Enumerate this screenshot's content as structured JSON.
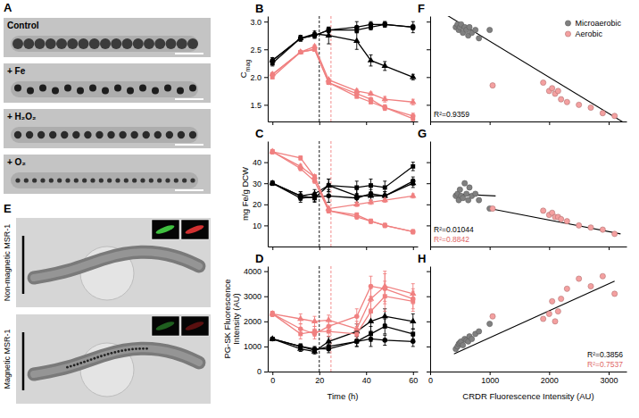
{
  "panels": [
    {
      "label": "A",
      "type": "image",
      "strips": [
        "Control",
        "+ Fe",
        "+ H₂O₂",
        "+ O₂"
      ]
    },
    {
      "label": "E",
      "type": "image",
      "images": [
        "Non-magnetic MSR-1",
        "Magnetic MSR-1"
      ]
    }
  ],
  "chart_data": [
    {
      "label": "B",
      "type": "line",
      "y_label": "C",
      "y_label_subscript": "mag",
      "x": [
        0,
        12,
        18,
        24,
        36,
        42,
        48,
        60
      ],
      "xlim": [
        -2,
        62
      ],
      "xticks": [
        0,
        20,
        40,
        60
      ],
      "ylim": [
        1.2,
        3.1
      ],
      "yticks": [
        1.5,
        {
          "value": 2,
          "label": "2.0"
        },
        2.5,
        {
          "value": 3,
          "label": "3.0"
        }
      ],
      "tick_labels": "y",
      "vlines": [
        {
          "value": 20,
          "color": "#000000",
          "line_style": "dashed"
        },
        {
          "value": 25,
          "color": "#f08080",
          "line_style": "dashed"
        }
      ],
      "series": [
        {
          "color": "#000000",
          "marker": "circle",
          "values": [
            2.3,
            2.7,
            2.75,
            2.85,
            2.9,
            2.95,
            2.95,
            2.9
          ],
          "errors": [
            0.05,
            0.05,
            0.05,
            0.05,
            0.1,
            0.05,
            0.05,
            0.1
          ]
        },
        {
          "color": "#000000",
          "marker": "triangle",
          "values": [
            2.3,
            2.7,
            2.78,
            2.75,
            2.65,
            2.3,
            2.2,
            2.0
          ],
          "errors": [
            0.05,
            0.05,
            0.05,
            0.15,
            0.15,
            0.1,
            0.08,
            0.05
          ]
        },
        {
          "color": "#000000",
          "marker": "square",
          "values": [
            2.25,
            2.7,
            2.75,
            2.85,
            2.85,
            2.9,
            2.95,
            2.9
          ],
          "errors": [
            0.05,
            0.05,
            0.05,
            0.05,
            0.05,
            0.05,
            0.05,
            0.05
          ]
        },
        {
          "color": "#f08080",
          "marker": "circle",
          "values": [
            2.05,
            2.45,
            2.5,
            1.9,
            1.7,
            1.6,
            1.45,
            1.3
          ],
          "errors": [
            0.03,
            0.03,
            0.03,
            0.03,
            0.03,
            0.03,
            0.05,
            0.05
          ]
        },
        {
          "color": "#f08080",
          "marker": "triangle",
          "values": [
            2.05,
            2.45,
            2.55,
            1.95,
            1.75,
            1.7,
            1.6,
            1.55
          ],
          "errors": [
            0.03,
            0.03,
            0.03,
            0.03,
            0.03,
            0.03,
            0.05,
            0.05
          ]
        },
        {
          "color": "#f08080",
          "marker": "square",
          "values": [
            2.0,
            2.45,
            2.5,
            1.9,
            1.65,
            1.55,
            1.45,
            1.25
          ],
          "errors": [
            0.03,
            0.03,
            0.03,
            0.03,
            0.03,
            0.03,
            0.05,
            0.05
          ]
        }
      ]
    },
    {
      "label": "C",
      "type": "line",
      "y_label": "mg Fe/g DCW",
      "x": [
        0,
        12,
        18,
        24,
        36,
        42,
        48,
        60
      ],
      "xlim": [
        -2,
        62
      ],
      "xticks": [
        0,
        20,
        40,
        60
      ],
      "ylim": [
        0,
        50
      ],
      "yticks": [
        10,
        20,
        30,
        40
      ],
      "tick_labels": "y",
      "vlines": [
        {
          "value": 20,
          "color": "#000000",
          "line_style": "dashed"
        },
        {
          "value": 25,
          "color": "#f08080",
          "line_style": "dashed"
        }
      ],
      "series": [
        {
          "color": "#000000",
          "marker": "circle",
          "values": [
            30,
            23,
            23.5,
            24,
            23,
            25,
            24,
            31
          ],
          "errors": [
            1,
            2,
            2,
            3,
            2,
            3,
            2,
            2
          ]
        },
        {
          "color": "#000000",
          "marker": "triangle",
          "values": [
            30,
            24,
            25,
            29,
            24,
            24,
            24,
            30
          ],
          "errors": [
            1,
            2,
            2,
            3,
            3,
            3,
            2,
            2
          ]
        },
        {
          "color": "#000000",
          "marker": "square",
          "values": [
            30,
            24,
            23,
            29,
            28,
            29,
            28,
            38
          ],
          "errors": [
            1,
            2,
            2,
            3,
            3,
            3,
            3,
            2
          ]
        },
        {
          "color": "#f08080",
          "marker": "circle",
          "values": [
            45,
            37,
            31,
            17,
            14,
            12,
            10,
            7
          ],
          "errors": [
            1,
            1,
            1,
            1,
            1,
            1,
            1,
            1
          ]
        },
        {
          "color": "#f08080",
          "marker": "triangle",
          "values": [
            45,
            38,
            33,
            18,
            20,
            21,
            22,
            24
          ],
          "errors": [
            1,
            1,
            1,
            1,
            1,
            1,
            1,
            1
          ]
        },
        {
          "color": "#f08080",
          "marker": "square",
          "values": [
            45,
            42,
            33,
            17,
            15,
            12,
            10,
            7
          ],
          "errors": [
            1,
            1,
            1,
            1,
            1,
            1,
            1,
            1
          ]
        }
      ]
    },
    {
      "label": "D",
      "type": "line",
      "y_label": "PG-SK Fluorescence Intensity (AU)",
      "x_label": "Time (h)",
      "x": [
        0,
        12,
        18,
        24,
        36,
        42,
        48,
        60
      ],
      "xlim": [
        -2,
        62
      ],
      "xticks": [
        0,
        20,
        40,
        60
      ],
      "ylim": [
        0,
        4200
      ],
      "yticks": [
        0,
        1000,
        2000,
        3000,
        4000
      ],
      "tick_labels": true,
      "vlines": [
        {
          "value": 20,
          "color": "#000000",
          "line_style": "dashed"
        },
        {
          "value": 25,
          "color": "#f08080",
          "line_style": "dashed"
        }
      ],
      "series": [
        {
          "color": "#000000",
          "marker": "circle",
          "values": [
            1300,
            1000,
            900,
            900,
            1200,
            1300,
            1250,
            1200
          ],
          "errors": [
            50,
            100,
            100,
            150,
            200,
            300,
            200,
            200
          ]
        },
        {
          "color": "#000000",
          "marker": "triangle",
          "values": [
            1300,
            900,
            800,
            1200,
            1600,
            2000,
            2200,
            2000
          ],
          "errors": [
            50,
            100,
            100,
            200,
            300,
            400,
            300,
            300
          ]
        },
        {
          "color": "#000000",
          "marker": "square",
          "values": [
            1300,
            1000,
            850,
            1000,
            1200,
            1500,
            1800,
            1500
          ],
          "errors": [
            50,
            100,
            100,
            150,
            200,
            300,
            300,
            200
          ]
        },
        {
          "color": "#f08080",
          "marker": "circle",
          "values": [
            2300,
            1700,
            1500,
            1800,
            2200,
            3400,
            3300,
            2900
          ],
          "errors": [
            100,
            200,
            200,
            200,
            300,
            400,
            600,
            400
          ]
        },
        {
          "color": "#f08080",
          "marker": "triangle",
          "values": [
            2300,
            2100,
            2000,
            2050,
            1700,
            2900,
            3400,
            3100
          ],
          "errors": [
            100,
            200,
            200,
            200,
            300,
            400,
            600,
            400
          ]
        },
        {
          "color": "#f08080",
          "marker": "square",
          "values": [
            2300,
            1500,
            1600,
            1600,
            1500,
            2400,
            3000,
            2800
          ],
          "errors": [
            100,
            200,
            200,
            200,
            300,
            400,
            600,
            400
          ]
        }
      ]
    },
    {
      "label": "F",
      "type": "scatter",
      "xlim": [
        0,
        3300
      ],
      "xticks": [
        0,
        1000,
        2000,
        3000
      ],
      "ylim": [
        1.2,
        3.1
      ],
      "yticks": [
        1.5,
        2,
        2.5,
        3
      ],
      "tick_labels": false,
      "legend": "top-right",
      "series": [
        {
          "name": "Microaerobic",
          "color": "#808080",
          "marker": "circle",
          "x": [
            430,
            460,
            480,
            500,
            520,
            550,
            580,
            610,
            640,
            660,
            700,
            760,
            820,
            1000
          ],
          "values": [
            2.9,
            2.95,
            2.85,
            2.9,
            2.95,
            2.8,
            2.9,
            2.85,
            2.75,
            2.9,
            2.8,
            2.85,
            2.7,
            2.85
          ]
        },
        {
          "name": "Aerobic",
          "color": "#f4a0a0",
          "marker": "circle",
          "x": [
            1050,
            1900,
            2000,
            2050,
            2100,
            2150,
            2200,
            2300,
            2500,
            2700,
            2900,
            3100
          ],
          "values": [
            1.85,
            1.9,
            1.75,
            1.8,
            1.7,
            1.75,
            1.6,
            1.55,
            1.5,
            1.45,
            1.35,
            1.3
          ]
        }
      ],
      "fits": [
        {
          "x": [
            0,
            3300
          ],
          "y": [
            3.3,
            1.15
          ],
          "color": "#000000"
        }
      ],
      "annotations": [
        {
          "text": "R²=0.9359",
          "color": "#000000"
        }
      ]
    },
    {
      "label": "G",
      "type": "scatter",
      "xlim": [
        0,
        3300
      ],
      "xticks": [
        0,
        1000,
        2000,
        3000
      ],
      "ylim": [
        0,
        50
      ],
      "yticks": [
        10,
        20,
        30,
        40
      ],
      "tick_labels": false,
      "series": [
        {
          "color": "#808080",
          "marker": "circle",
          "x": [
            430,
            460,
            480,
            500,
            520,
            550,
            580,
            610,
            640,
            660,
            700,
            760,
            820,
            1000
          ],
          "values": [
            24,
            25,
            22,
            27,
            24,
            23,
            30,
            25,
            22,
            28,
            24,
            25,
            22,
            18
          ]
        },
        {
          "color": "#f4a0a0",
          "marker": "circle",
          "x": [
            1050,
            1900,
            2000,
            2050,
            2100,
            2150,
            2200,
            2300,
            2500,
            2700,
            2900,
            3100
          ],
          "values": [
            18,
            17,
            15,
            16,
            14,
            14,
            13,
            12,
            10,
            9,
            8,
            6
          ]
        }
      ],
      "fits": [
        {
          "x": [
            400,
            1100
          ],
          "y": [
            25,
            24
          ],
          "color": "#000000"
        },
        {
          "x": [
            1000,
            3200
          ],
          "y": [
            18,
            6
          ],
          "color": "#000000"
        }
      ],
      "annotations": [
        {
          "text": "R²=0.01044",
          "color": "#000000"
        },
        {
          "text": "R²=0.8842",
          "color": "#e06666"
        }
      ]
    },
    {
      "label": "H",
      "type": "scatter",
      "x_label": "CRDR Fluorescence Intensity (AU)",
      "xlim": [
        0,
        3300
      ],
      "xticks": [
        0,
        1000,
        2000,
        3000
      ],
      "ylim": [
        0,
        4200
      ],
      "yticks": [
        0,
        1000,
        2000,
        3000,
        4000
      ],
      "tick_labels": "x",
      "series": [
        {
          "color": "#808080",
          "marker": "circle",
          "x": [
            430,
            460,
            480,
            500,
            520,
            550,
            580,
            610,
            640,
            660,
            700,
            760,
            820,
            1000
          ],
          "values": [
            900,
            1000,
            1100,
            1150,
            1200,
            1050,
            1300,
            1250,
            1200,
            1400,
            1300,
            1500,
            1600,
            1900
          ]
        },
        {
          "color": "#f4a0a0",
          "marker": "circle",
          "x": [
            1050,
            1900,
            2000,
            2050,
            2100,
            2150,
            2200,
            2300,
            2500,
            2700,
            2900,
            3100
          ],
          "values": [
            2200,
            2100,
            2300,
            2800,
            2000,
            2400,
            2900,
            3300,
            3700,
            3400,
            3800,
            3100
          ]
        }
      ],
      "fits": [
        {
          "x": [
            400,
            3100
          ],
          "y": [
            700,
            3600
          ],
          "color": "#000000"
        }
      ],
      "annotations": [
        {
          "text": "R²=0.3856",
          "color": "#000000"
        },
        {
          "text": "R²=0.7537",
          "color": "#e06666"
        }
      ]
    }
  ]
}
